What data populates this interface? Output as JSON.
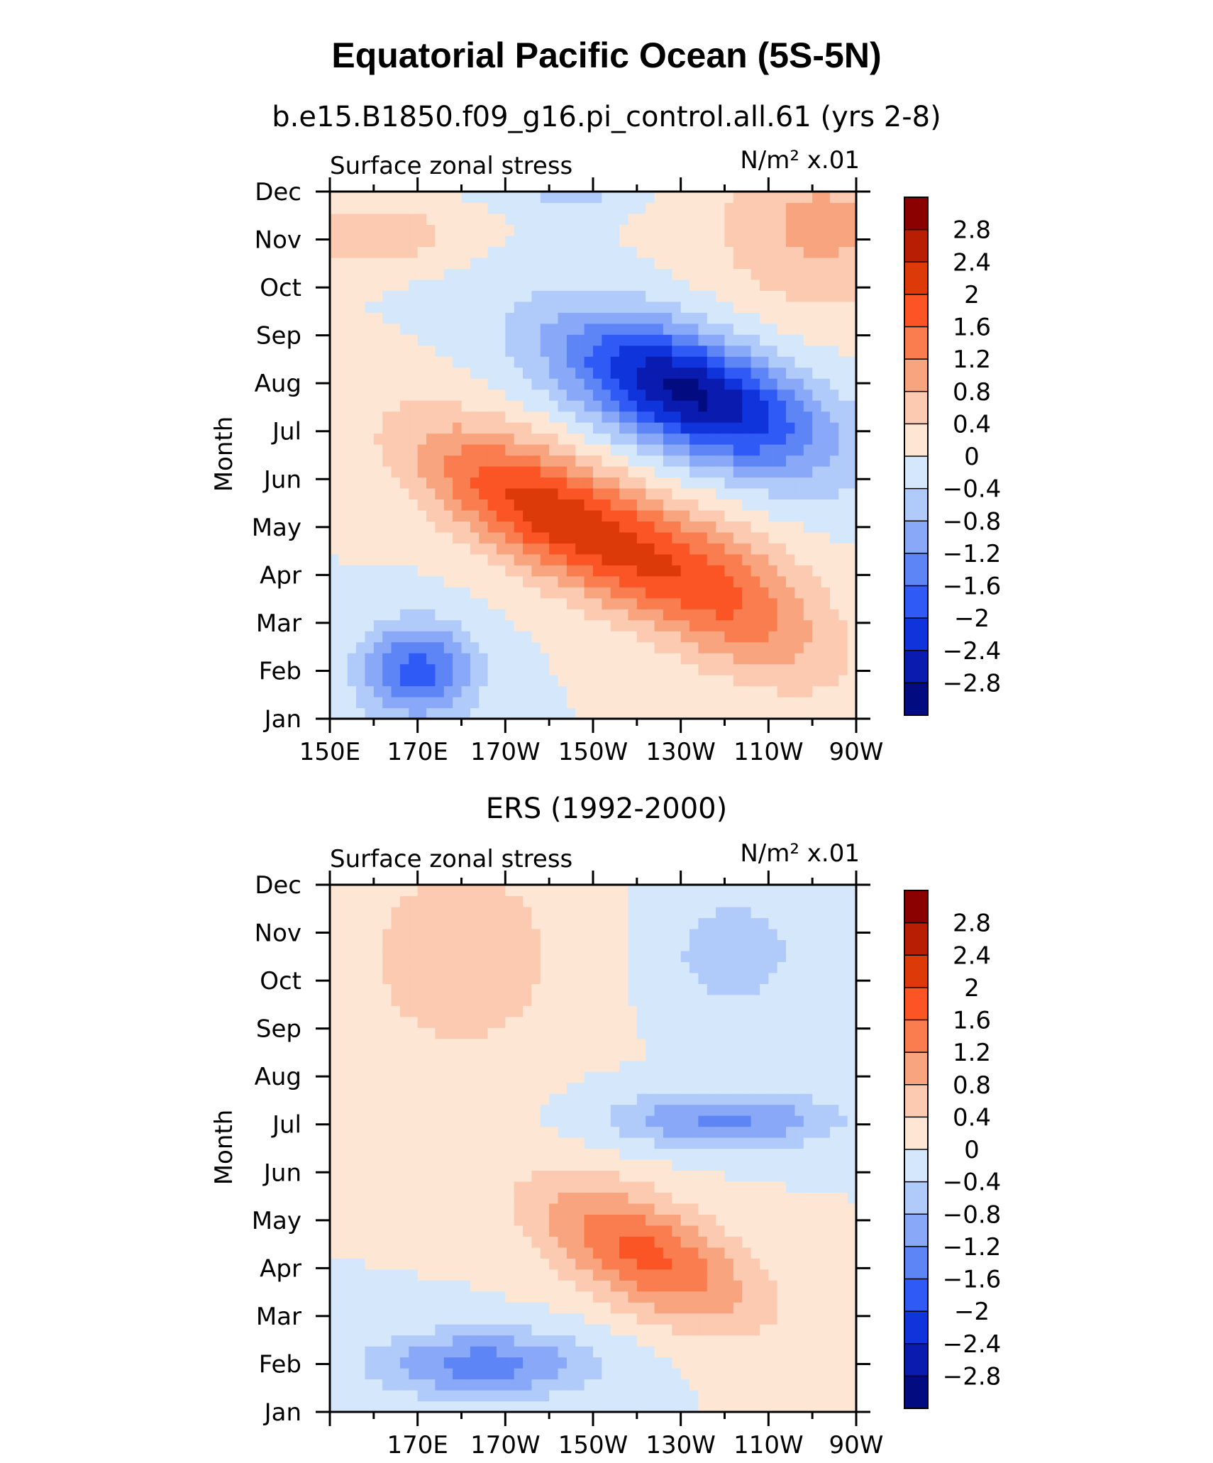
{
  "figure": {
    "title": "Equatorial Pacific Ocean (5S-5N)"
  },
  "chart_data": [
    {
      "type": "heatmap",
      "subtitle": "b.e15.B1850.f09_g16.pi_control.all.61 (yrs 2-8)",
      "left_label": "Surface zonal stress",
      "right_label": "N/m² x.01",
      "ylabel": "Month",
      "xlabel": "",
      "x_ticks": [
        "150E",
        "170E",
        "170W",
        "150W",
        "130W",
        "110W",
        "90W"
      ],
      "x_tick_lons": [
        150,
        170,
        190,
        210,
        230,
        250,
        270
      ],
      "xlim": [
        150,
        270
      ],
      "y_ticks": [
        "Jan",
        "Feb",
        "Mar",
        "Apr",
        "May",
        "Jun",
        "Jul",
        "Aug",
        "Sep",
        "Oct",
        "Nov",
        "Dec"
      ],
      "features": [
        {
          "lon": 200,
          "month": 4.3,
          "amp": 2.2,
          "slon": 30,
          "smon": 1.3,
          "tilt": -0.04
        },
        {
          "lon": 240,
          "month": 2.6,
          "amp": 1.4,
          "slon": 25,
          "smon": 1.5,
          "tilt": -0.04
        },
        {
          "lon": 232,
          "month": 6.8,
          "amp": -2.9,
          "slon": 30,
          "smon": 1.3,
          "tilt": -0.03
        },
        {
          "lon": 170,
          "month": 1.0,
          "amp": -1.8,
          "slon": 13,
          "smon": 1.0,
          "tilt": 0
        },
        {
          "lon": 160,
          "month": 10.1,
          "amp": 0.8,
          "slon": 18,
          "smon": 0.6,
          "tilt": 0
        },
        {
          "lon": 205,
          "month": 11.4,
          "amp": -1.1,
          "slon": 15,
          "smon": 0.6,
          "tilt": 0
        },
        {
          "lon": 262,
          "month": 10.3,
          "amp": 0.9,
          "slon": 25,
          "smon": 1.8,
          "tilt": 0
        }
      ]
    },
    {
      "type": "heatmap",
      "subtitle": "ERS (1992-2000)",
      "left_label": "Surface zonal stress",
      "right_label": "N/m² x.01",
      "ylabel": "Month",
      "xlabel": "",
      "x_ticks": [
        "170E",
        "170W",
        "150W",
        "130W",
        "110W",
        "90W"
      ],
      "x_tick_lons": [
        170,
        190,
        210,
        230,
        250,
        270
      ],
      "xlim": [
        150,
        270
      ],
      "y_ticks": [
        "Jan",
        "Feb",
        "Mar",
        "Apr",
        "May",
        "Jun",
        "Jul",
        "Aug",
        "Sep",
        "Oct",
        "Nov",
        "Dec"
      ],
      "features": [
        {
          "lon": 222,
          "month": 3.3,
          "amp": 1.7,
          "slon": 25,
          "smon": 1.2,
          "tilt": -0.035
        },
        {
          "lon": 185,
          "month": 1.0,
          "amp": -1.4,
          "slon": 25,
          "smon": 0.7,
          "tilt": 0
        },
        {
          "lon": 240,
          "month": 6.1,
          "amp": -1.3,
          "slon": 25,
          "smon": 0.6,
          "tilt": 0
        },
        {
          "lon": 215,
          "month": 11.8,
          "amp": -1.7,
          "slon": 12,
          "smon": 0.4,
          "tilt": 0
        },
        {
          "lon": 180,
          "month": 9.5,
          "amp": 0.8,
          "slon": 22,
          "smon": 2.0,
          "tilt": 0
        },
        {
          "lon": 242,
          "month": 9.6,
          "amp": -0.7,
          "slon": 15,
          "smon": 1.2,
          "tilt": 0
        }
      ]
    }
  ],
  "colorbar": {
    "labels": [
      "2.8",
      "2.4",
      "2",
      "1.6",
      "1.2",
      "0.8",
      "0.4",
      "0",
      "−0.4",
      "−0.8",
      "−1.2",
      "−1.6",
      "−2",
      "−2.4",
      "−2.8"
    ],
    "levels": [
      2.8,
      2.4,
      2,
      1.6,
      1.2,
      0.8,
      0.4,
      0,
      -0.4,
      -0.8,
      -1.2,
      -1.6,
      -2,
      -2.4,
      -2.8
    ],
    "colors": [
      "#8b0000",
      "#b71e03",
      "#dd3a0a",
      "#fb5526",
      "#fa7d4f",
      "#f8a47f",
      "#fbcab0",
      "#fde6d3",
      "#d5e8fb",
      "#b0caf9",
      "#89a9f8",
      "#5d85f6",
      "#2f5af5",
      "#1034dc",
      "#0a1bb0",
      "#020c80"
    ]
  }
}
